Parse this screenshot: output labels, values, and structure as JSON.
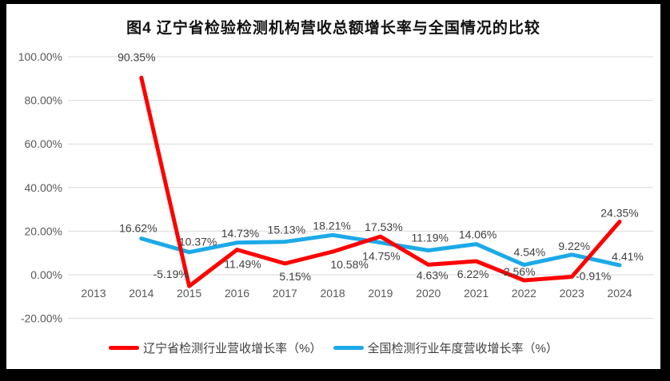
{
  "frame": {
    "background_color": "#000000",
    "panel_color": "#ffffff"
  },
  "chart_data": {
    "type": "line",
    "title": "图4 辽宁省检验检测机构营收总额增长率与全国情况的比较",
    "categories": [
      "2013",
      "2014",
      "2015",
      "2016",
      "2017",
      "2018",
      "2019",
      "2020",
      "2021",
      "2022",
      "2023",
      "2024"
    ],
    "series": [
      {
        "name": "辽宁省检测行业营收增长率（%）",
        "color": "#FF0000",
        "values": [
          null,
          90.35,
          -5.19,
          11.49,
          5.15,
          10.58,
          17.53,
          4.63,
          6.22,
          -2.56,
          -0.91,
          24.35
        ],
        "label_offsets": [
          null,
          [
            -6,
            -26
          ],
          [
            -23,
            -15
          ],
          [
            7,
            18
          ],
          [
            13,
            16
          ],
          [
            21,
            16
          ],
          [
            4,
            -12
          ],
          [
            5,
            13
          ],
          [
            -4,
            16
          ],
          [
            -8,
            -11
          ],
          [
            27,
            -1
          ],
          [
            0,
            -11
          ]
        ]
      },
      {
        "name": "全国检测行业年度营收增长率（%）",
        "color": "#1CA9E8",
        "values": [
          null,
          16.62,
          10.37,
          14.73,
          15.13,
          18.21,
          14.75,
          11.19,
          14.06,
          4.54,
          9.22,
          4.41
        ],
        "label_offsets": [
          null,
          [
            -4,
            -13
          ],
          [
            11,
            -13
          ],
          [
            4,
            -12
          ],
          [
            2,
            -15
          ],
          [
            -1,
            -12
          ],
          [
            1,
            17
          ],
          [
            2,
            -16
          ],
          [
            2,
            -12
          ],
          [
            7,
            -16
          ],
          [
            3,
            -11
          ],
          [
            10,
            -11
          ]
        ]
      }
    ],
    "y_axis": {
      "min": -20,
      "max": 100,
      "step": 20
    },
    "y_tick_labels": [
      "100.00%",
      "80.00%",
      "60.00%",
      "40.00%",
      "20.00%",
      "0.00%",
      "-20.00%"
    ],
    "grid": true,
    "legend_position": "bottom",
    "colors": {
      "gridline": "#D9D9D9",
      "axis_label": "#595959",
      "data_label": "#3F3F3F",
      "title": "#111111"
    }
  }
}
